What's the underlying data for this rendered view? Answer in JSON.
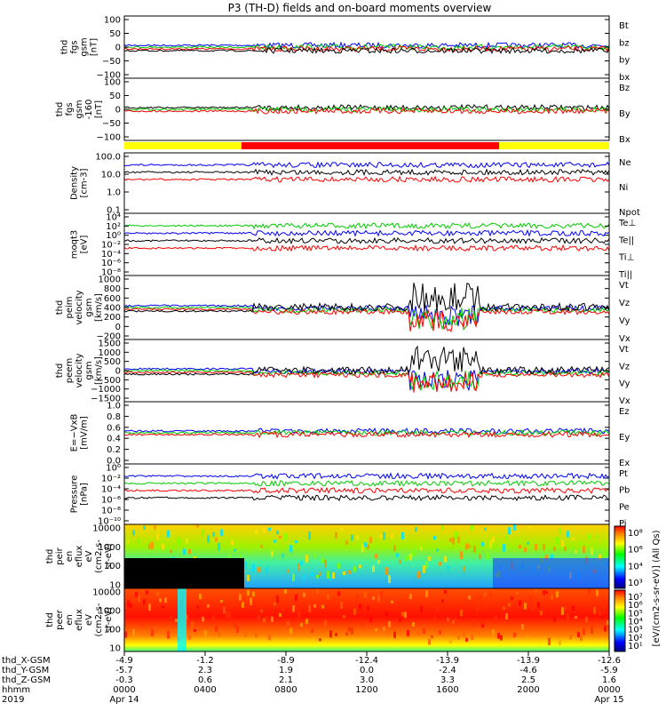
{
  "title": "P3 (TH-D) fields and on-board moments overview",
  "bar_colors": [
    "#ffff00",
    "#ff0000"
  ],
  "chart_data": {
    "type": "line",
    "panels": [
      {
        "ylabel": [
          "thd",
          "fgs",
          "gsm",
          "[nT]"
        ],
        "ticks": [
          "100",
          "50",
          "0",
          "−50",
          "−100"
        ],
        "ylim": [
          -100,
          100
        ],
        "legend": [
          {
            "name": "Bt",
            "color": "#000000"
          },
          {
            "name": "bz",
            "color": "#ff0000"
          },
          {
            "name": "by",
            "color": "#00cc00"
          },
          {
            "name": "bx",
            "color": "#0000ff"
          }
        ]
      },
      {
        "ylabel": [
          "thd",
          "fgs",
          "gsm",
          "-160",
          "[nT]"
        ],
        "ticks": [
          "100",
          "50",
          "0",
          "−50",
          "−100"
        ],
        "ylim": [
          -120,
          120
        ],
        "legend": [
          {
            "name": "Bz",
            "color": "#ff0000"
          },
          {
            "name": "By",
            "color": "#00cc00"
          },
          {
            "name": "Bx",
            "color": "#000000"
          }
        ]
      },
      {
        "ylabel": [
          "Density",
          "[cm-3]"
        ],
        "ticks": [
          "100.0",
          "10.0",
          "1.0",
          "0.1"
        ],
        "log": true,
        "ylim": [
          0.1,
          200
        ],
        "legend": [
          {
            "name": "Ne",
            "color": "#ff0000"
          },
          {
            "name": "Ni",
            "color": "#000000"
          },
          {
            "name": "Npot",
            "color": "#0000ff"
          }
        ]
      },
      {
        "ylabel": [
          "moqt3",
          "[eV]"
        ],
        "ticks": [
          "10⁴",
          "10²",
          "10⁰",
          "10⁻²",
          "10⁻⁴",
          "10⁻⁶",
          "10⁻⁸"
        ],
        "log": true,
        "legend": [
          {
            "name": "Te⊥",
            "color": "#ff0000"
          },
          {
            "name": "Te||",
            "color": "#000000"
          },
          {
            "name": "Ti⊥",
            "color": "#0000ff"
          },
          {
            "name": "Ti||",
            "color": "#00cc00"
          }
        ]
      },
      {
        "ylabel": [
          "thd",
          "peim",
          "velocity",
          "gsm",
          "[km/s]"
        ],
        "ticks": [
          "1000",
          "800",
          "600",
          "400",
          "200",
          "0",
          "−200"
        ],
        "ylim": [
          -200,
          1000
        ],
        "legend": [
          {
            "name": "Vt",
            "color": "#000000"
          },
          {
            "name": "Vz",
            "color": "#ff0000"
          },
          {
            "name": "Vy",
            "color": "#00cc00"
          },
          {
            "name": "Vx",
            "color": "#0000ff"
          }
        ]
      },
      {
        "ylabel": [
          "thd",
          "peem",
          "velocity",
          "gsm",
          "[km/s]"
        ],
        "ticks": [
          "1500",
          "1000",
          "500",
          "0",
          "−500",
          "−1000",
          "−1500"
        ],
        "ylim": [
          -1500,
          1500
        ],
        "legend": [
          {
            "name": "Vt",
            "color": "#000000"
          },
          {
            "name": "Vz",
            "color": "#ff0000"
          },
          {
            "name": "Vy",
            "color": "#00cc00"
          },
          {
            "name": "Vx",
            "color": "#0000ff"
          }
        ]
      },
      {
        "ylabel": [
          "E=−VxB",
          "[mV/m]"
        ],
        "ticks": [
          "1.0",
          "0.8",
          "0.6",
          "0.4",
          "0.2",
          "0.0"
        ],
        "ylim": [
          0,
          1
        ],
        "legend": [
          {
            "name": "Ez",
            "color": "#ff0000"
          },
          {
            "name": "Ey",
            "color": "#00cc00"
          },
          {
            "name": "Ex",
            "color": "#0000ff"
          }
        ]
      },
      {
        "ylabel": [
          "Pressure",
          "[nPa]"
        ],
        "ticks": [
          "10⁰",
          "10⁻²",
          "10⁻⁴",
          "10⁻⁶",
          "10⁻⁸",
          "10⁻¹⁰"
        ],
        "log": true,
        "legend": [
          {
            "name": "Pt",
            "color": "#000000"
          },
          {
            "name": "Pb",
            "color": "#ff0000"
          },
          {
            "name": "Pe",
            "color": "#00cc00"
          },
          {
            "name": "Pi",
            "color": "#0000ff"
          }
        ]
      },
      {
        "ylabel": [
          "thd",
          "peir",
          "en",
          "eflux",
          "eV",
          "(cm2-s-",
          "sr-eV)"
        ],
        "ticks": [
          "10000",
          "1000",
          "100",
          "10"
        ],
        "log": true,
        "type": "heatmap"
      },
      {
        "ylabel": [
          "thd",
          "peer",
          "en",
          "eflux",
          "eV",
          "(cm2-s-",
          "sr-eV)"
        ],
        "ticks": [
          "10000",
          "1000",
          "100",
          "10"
        ],
        "log": true,
        "type": "heatmap"
      }
    ],
    "colorbar": [
      {
        "ticks": [
          "10⁸",
          "10⁶",
          "10⁴",
          "10³"
        ]
      },
      {
        "ticks": [
          "10⁷",
          "10⁶",
          "10⁵",
          "10⁴",
          "10³",
          "10²",
          "10¹"
        ]
      }
    ],
    "colorbar_label": "[eV/(cm2-s-sr-eV)] (All Qs)",
    "x_rows": [
      {
        "label": "thd_X-GSM",
        "values": [
          "-4.9",
          "-1.2",
          "-8.9",
          "-12.4",
          "-13.9",
          "-13.9",
          "-12.6"
        ]
      },
      {
        "label": "thd_Y-GSM",
        "values": [
          "-5.7",
          "2.3",
          "1.9",
          "0.0",
          "-2.4",
          "-4.6",
          "-5.9"
        ]
      },
      {
        "label": "thd_Z-GSM",
        "values": [
          "-0.3",
          "0.6",
          "2.1",
          "3.0",
          "3.3",
          "2.5",
          "1.6"
        ]
      },
      {
        "label": "hhmm",
        "values": [
          "0000",
          "0400",
          "0800",
          "1200",
          "1600",
          "2000",
          "0000"
        ]
      },
      {
        "label": "2019",
        "values": [
          "Apr 14",
          "",
          "",
          "",
          "",
          "",
          "Apr 15"
        ]
      }
    ],
    "x_values": [
      "Apr 14 00:00",
      "Apr 14 04:00",
      "Apr 14 08:00",
      "Apr 14 12:00",
      "Apr 14 16:00",
      "Apr 14 20:00",
      "Apr 15 00:00"
    ]
  }
}
